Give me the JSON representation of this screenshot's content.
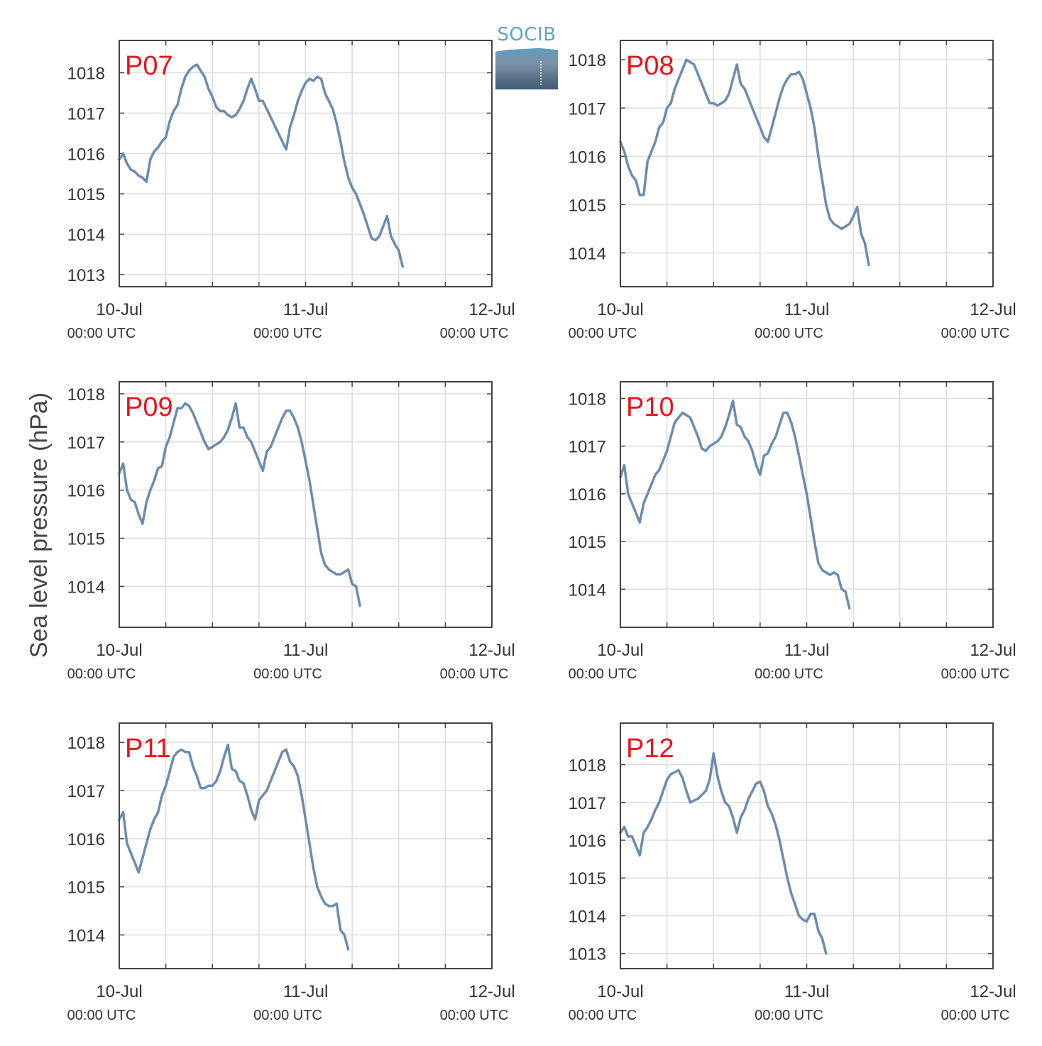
{
  "ylabel": "Sea level pressure (hPa)",
  "logo_text": "SOCIB",
  "x_tick_dates": [
    "10-Jul",
    "11-Jul",
    "12-Jul"
  ],
  "x_tick_times": [
    "00:00 UTC",
    "00:00 UTC",
    "00:00 UTC"
  ],
  "colors": {
    "line": "#6b8cae",
    "label": "#e8141c",
    "frame": "#444444",
    "grid": "#dddddd",
    "text": "#333333"
  },
  "chart_data": [
    {
      "type": "line",
      "station": "P07",
      "xlim": [
        0,
        48
      ],
      "ylim": [
        1012.7,
        1018.8
      ],
      "yticks": [
        1013,
        1014,
        1015,
        1016,
        1017,
        1018
      ],
      "x": [
        0,
        0.5,
        1,
        1.5,
        2,
        2.5,
        3,
        3.5,
        4,
        4.5,
        5,
        5.5,
        6,
        6.5,
        7,
        7.5,
        8,
        8.5,
        9,
        9.5,
        10,
        10.5,
        11,
        11.5,
        12,
        12.5,
        13,
        13.5,
        14,
        14.5,
        15,
        15.5,
        16,
        16.5,
        17,
        17.5,
        18,
        18.5,
        19,
        19.5,
        20,
        20.5,
        21,
        21.5,
        22,
        22.5,
        23,
        23.5,
        24,
        24.5,
        25,
        25.5,
        26,
        26.5,
        27,
        27.5,
        28,
        28.5,
        29,
        29.5,
        30,
        30.5,
        31,
        31.5,
        32,
        32.5,
        33,
        33.5,
        34,
        34.5,
        35,
        35.5,
        36,
        36.5,
        37,
        37.5,
        38,
        38.5,
        39,
        39.5,
        40,
        40.5,
        41,
        41.5,
        42,
        42.5,
        43,
        43.5,
        44,
        44.5,
        45,
        45.5,
        46,
        46.5,
        47,
        47.5,
        48
      ],
      "y": [
        1015.85,
        1016.0,
        1015.75,
        1015.6,
        1015.55,
        1015.45,
        1015.4,
        1015.3,
        1015.85,
        1016.05,
        1016.15,
        1016.3,
        1016.4,
        1016.8,
        1017.05,
        1017.2,
        1017.6,
        1017.9,
        1018.05,
        1018.15,
        1018.2,
        1018.05,
        1017.9,
        1017.6,
        1017.4,
        1017.15,
        1017.05,
        1017.05,
        1016.95,
        1016.9,
        1016.95,
        1017.1,
        1017.3,
        1017.6,
        1017.85,
        1017.6,
        1017.3,
        1017.3,
        1017.1,
        1016.9,
        1016.7,
        1016.5,
        1016.3,
        1016.1,
        1016.65,
        1016.95,
        1017.3,
        1017.55,
        1017.75,
        1017.85,
        1017.8,
        1017.9,
        1017.85,
        1017.5,
        1017.3,
        1017.1,
        1016.75,
        1016.3,
        1015.8,
        1015.4,
        1015.15,
        1015.0,
        1014.75,
        1014.5,
        1014.2,
        1013.9,
        1013.85,
        1013.95,
        1014.2,
        1014.45,
        1013.95,
        1013.75,
        1013.6,
        1013.2,
        null,
        null,
        null,
        null,
        null,
        null,
        null,
        null,
        null,
        null,
        null,
        null,
        null,
        null,
        null,
        null,
        null,
        null,
        null,
        null,
        null,
        null,
        null
      ]
    },
    {
      "type": "line",
      "station": "P08",
      "xlim": [
        0,
        48
      ],
      "ylim": [
        1013.3,
        1018.4
      ],
      "yticks": [
        1014,
        1015,
        1016,
        1017,
        1018
      ],
      "x": [
        0,
        0.5,
        1,
        1.5,
        2,
        2.5,
        3,
        3.5,
        4,
        4.5,
        5,
        5.5,
        6,
        6.5,
        7,
        7.5,
        8,
        8.5,
        9,
        9.5,
        10,
        10.5,
        11,
        11.5,
        12,
        12.5,
        13,
        13.5,
        14,
        14.5,
        15,
        15.5,
        16,
        16.5,
        17,
        17.5,
        18,
        18.5,
        19,
        19.5,
        20,
        20.5,
        21,
        21.5,
        22,
        22.5,
        23,
        23.5,
        24,
        24.5,
        25,
        25.5,
        26,
        26.5,
        27,
        27.5,
        28,
        28.5,
        29,
        29.5,
        30,
        30.5,
        31,
        31.5,
        32,
        32.5,
        33,
        33.5,
        34,
        34.5,
        35,
        35.5,
        36,
        36.5,
        37,
        37.5,
        38,
        38.5,
        39,
        39.5,
        40,
        40.5,
        41,
        41.5,
        42,
        42.5,
        43,
        43.5,
        44,
        44.5,
        45,
        45.5,
        46,
        46.5,
        47,
        47.5,
        48
      ],
      "y": [
        1016.3,
        1016.1,
        1015.8,
        1015.6,
        1015.5,
        1015.2,
        1015.2,
        1015.9,
        1016.1,
        1016.3,
        1016.6,
        1016.7,
        1017.0,
        1017.1,
        1017.4,
        1017.6,
        1017.8,
        1018.0,
        1017.95,
        1017.9,
        1017.7,
        1017.5,
        1017.3,
        1017.1,
        1017.1,
        1017.05,
        1017.1,
        1017.15,
        1017.3,
        1017.6,
        1017.9,
        1017.5,
        1017.4,
        1017.2,
        1017.0,
        1016.8,
        1016.6,
        1016.4,
        1016.3,
        1016.6,
        1016.9,
        1017.2,
        1017.45,
        1017.6,
        1017.7,
        1017.7,
        1017.75,
        1017.6,
        1017.3,
        1017.0,
        1016.6,
        1016.0,
        1015.5,
        1015.0,
        1014.7,
        1014.6,
        1014.55,
        1014.5,
        1014.55,
        1014.6,
        1014.75,
        1014.95,
        1014.4,
        1014.2,
        1013.75,
        null,
        null,
        null,
        null,
        null,
        null,
        null,
        null,
        null,
        null,
        null,
        null,
        null,
        null,
        null,
        null,
        null,
        null,
        null,
        null,
        null,
        null,
        null,
        null,
        null,
        null,
        null,
        null,
        null,
        null,
        null,
        null
      ]
    },
    {
      "type": "line",
      "station": "P09",
      "xlim": [
        0,
        48
      ],
      "ylim": [
        1013.15,
        1018.25
      ],
      "yticks": [
        1014,
        1015,
        1016,
        1017,
        1018
      ],
      "x": [
        0,
        0.5,
        1,
        1.5,
        2,
        2.5,
        3,
        3.5,
        4,
        4.5,
        5,
        5.5,
        6,
        6.5,
        7,
        7.5,
        8,
        8.5,
        9,
        9.5,
        10,
        10.5,
        11,
        11.5,
        12,
        12.5,
        13,
        13.5,
        14,
        14.5,
        15,
        15.5,
        16,
        16.5,
        17,
        17.5,
        18,
        18.5,
        19,
        19.5,
        20,
        20.5,
        21,
        21.5,
        22,
        22.5,
        23,
        23.5,
        24,
        24.5,
        25,
        25.5,
        26,
        26.5,
        27,
        27.5,
        28,
        28.5,
        29,
        29.5,
        30,
        30.5,
        31,
        31.5,
        32,
        32.5,
        33,
        33.5,
        34,
        34.5,
        35,
        35.5,
        36,
        36.5,
        37,
        37.5,
        38,
        38.5,
        39,
        39.5,
        40,
        40.5,
        41,
        41.5,
        42,
        42.5,
        43,
        43.5,
        44,
        44.5,
        45,
        45.5,
        46,
        46.5,
        47,
        47.5,
        48
      ],
      "y": [
        1016.35,
        1016.55,
        1016.0,
        1015.8,
        1015.75,
        1015.5,
        1015.3,
        1015.75,
        1016.0,
        1016.2,
        1016.45,
        1016.5,
        1016.9,
        1017.1,
        1017.4,
        1017.7,
        1017.7,
        1017.8,
        1017.75,
        1017.6,
        1017.4,
        1017.2,
        1017.0,
        1016.85,
        1016.9,
        1016.95,
        1017.0,
        1017.1,
        1017.25,
        1017.5,
        1017.8,
        1017.3,
        1017.3,
        1017.1,
        1017.0,
        1016.8,
        1016.6,
        1016.4,
        1016.8,
        1016.9,
        1017.1,
        1017.3,
        1017.5,
        1017.65,
        1017.65,
        1017.5,
        1017.3,
        1017.0,
        1016.6,
        1016.2,
        1015.7,
        1015.2,
        1014.7,
        1014.45,
        1014.35,
        1014.3,
        1014.25,
        1014.25,
        1014.3,
        1014.35,
        1014.05,
        1014.0,
        1013.6,
        null,
        null,
        null,
        null,
        null,
        null,
        null,
        null,
        null,
        null,
        null,
        null,
        null,
        null,
        null,
        null,
        null,
        null,
        null,
        null,
        null,
        null,
        null,
        null,
        null,
        null,
        null,
        null,
        null,
        null,
        null,
        null,
        null,
        null
      ]
    },
    {
      "type": "line",
      "station": "P10",
      "xlim": [
        0,
        48
      ],
      "ylim": [
        1013.2,
        1018.35
      ],
      "yticks": [
        1014,
        1015,
        1016,
        1017,
        1018
      ],
      "x": [
        0,
        0.5,
        1,
        1.5,
        2,
        2.5,
        3,
        3.5,
        4,
        4.5,
        5,
        5.5,
        6,
        6.5,
        7,
        7.5,
        8,
        8.5,
        9,
        9.5,
        10,
        10.5,
        11,
        11.5,
        12,
        12.5,
        13,
        13.5,
        14,
        14.5,
        15,
        15.5,
        16,
        16.5,
        17,
        17.5,
        18,
        18.5,
        19,
        19.5,
        20,
        20.5,
        21,
        21.5,
        22,
        22.5,
        23,
        23.5,
        24,
        24.5,
        25,
        25.5,
        26,
        26.5,
        27,
        27.5,
        28,
        28.5,
        29,
        29.5,
        30,
        30.5,
        31,
        31.5,
        32,
        32.5,
        33,
        33.5,
        34,
        34.5,
        35,
        35.5,
        36,
        36.5,
        37,
        37.5,
        38,
        38.5,
        39,
        39.5,
        40,
        40.5,
        41,
        41.5,
        42,
        42.5,
        43,
        43.5,
        44,
        44.5,
        45,
        45.5,
        46,
        46.5,
        47,
        47.5,
        48
      ],
      "y": [
        1016.35,
        1016.6,
        1016.0,
        1015.8,
        1015.6,
        1015.4,
        1015.8,
        1016.0,
        1016.2,
        1016.4,
        1016.5,
        1016.7,
        1016.9,
        1017.2,
        1017.5,
        1017.6,
        1017.7,
        1017.65,
        1017.6,
        1017.4,
        1017.2,
        1016.95,
        1016.9,
        1017.0,
        1017.05,
        1017.1,
        1017.2,
        1017.4,
        1017.65,
        1017.95,
        1017.45,
        1017.4,
        1017.2,
        1017.1,
        1016.9,
        1016.6,
        1016.4,
        1016.8,
        1016.85,
        1017.05,
        1017.2,
        1017.45,
        1017.7,
        1017.7,
        1017.5,
        1017.2,
        1016.8,
        1016.4,
        1016.0,
        1015.5,
        1015.0,
        1014.55,
        1014.4,
        1014.35,
        1014.3,
        1014.35,
        1014.3,
        1014.0,
        1013.95,
        1013.6,
        null,
        null,
        null,
        null,
        null,
        null,
        null,
        null,
        null,
        null,
        null,
        null,
        null,
        null,
        null,
        null,
        null,
        null,
        null,
        null,
        null,
        null,
        null,
        null,
        null,
        null,
        null,
        null,
        null,
        null,
        null,
        null,
        null,
        null,
        null,
        null,
        null
      ]
    },
    {
      "type": "line",
      "station": "P11",
      "xlim": [
        0,
        48
      ],
      "ylim": [
        1013.3,
        1018.4
      ],
      "yticks": [
        1014,
        1015,
        1016,
        1017,
        1018
      ],
      "x": [
        0,
        0.5,
        1,
        1.5,
        2,
        2.5,
        3,
        3.5,
        4,
        4.5,
        5,
        5.5,
        6,
        6.5,
        7,
        7.5,
        8,
        8.5,
        9,
        9.5,
        10,
        10.5,
        11,
        11.5,
        12,
        12.5,
        13,
        13.5,
        14,
        14.5,
        15,
        15.5,
        16,
        16.5,
        17,
        17.5,
        18,
        18.5,
        19,
        19.5,
        20,
        20.5,
        21,
        21.5,
        22,
        22.5,
        23,
        23.5,
        24,
        24.5,
        25,
        25.5,
        26,
        26.5,
        27,
        27.5,
        28,
        28.5,
        29,
        29.5,
        30,
        30.5,
        31,
        31.5,
        32,
        32.5,
        33,
        33.5,
        34,
        34.5,
        35,
        35.5,
        36,
        36.5,
        37,
        37.5,
        38,
        38.5,
        39,
        39.5,
        40,
        40.5,
        41,
        41.5,
        42,
        42.5,
        43,
        43.5,
        44,
        44.5,
        45,
        45.5,
        46,
        46.5,
        47,
        47.5,
        48
      ],
      "y": [
        1016.4,
        1016.55,
        1015.9,
        1015.7,
        1015.5,
        1015.3,
        1015.6,
        1015.9,
        1016.2,
        1016.4,
        1016.55,
        1016.9,
        1017.1,
        1017.4,
        1017.7,
        1017.8,
        1017.85,
        1017.8,
        1017.8,
        1017.5,
        1017.3,
        1017.05,
        1017.05,
        1017.1,
        1017.1,
        1017.2,
        1017.4,
        1017.7,
        1017.95,
        1017.45,
        1017.4,
        1017.2,
        1017.15,
        1016.9,
        1016.6,
        1016.4,
        1016.8,
        1016.9,
        1017.0,
        1017.2,
        1017.4,
        1017.6,
        1017.8,
        1017.85,
        1017.6,
        1017.5,
        1017.3,
        1016.9,
        1016.4,
        1015.9,
        1015.4,
        1015.0,
        1014.8,
        1014.65,
        1014.6,
        1014.6,
        1014.65,
        1014.1,
        1014.0,
        1013.7,
        null,
        null,
        null,
        null,
        null,
        null,
        null,
        null,
        null,
        null,
        null,
        null,
        null,
        null,
        null,
        null,
        null,
        null,
        null,
        null,
        null,
        null,
        null,
        null,
        null,
        null,
        null,
        null,
        null,
        null,
        null,
        null,
        null,
        null,
        null,
        null,
        null
      ]
    },
    {
      "type": "line",
      "station": "P12",
      "xlim": [
        0,
        48
      ],
      "ylim": [
        1012.6,
        1019.1
      ],
      "yticks": [
        1013,
        1014,
        1015,
        1016,
        1017,
        1018
      ],
      "x": [
        0,
        0.5,
        1,
        1.5,
        2,
        2.5,
        3,
        3.5,
        4,
        4.5,
        5,
        5.5,
        6,
        6.5,
        7,
        7.5,
        8,
        8.5,
        9,
        9.5,
        10,
        10.5,
        11,
        11.5,
        12,
        12.5,
        13,
        13.5,
        14,
        14.5,
        15,
        15.5,
        16,
        16.5,
        17,
        17.5,
        18,
        18.5,
        19,
        19.5,
        20,
        20.5,
        21,
        21.5,
        22,
        22.5,
        23,
        23.5,
        24,
        24.5,
        25,
        25.5,
        26,
        26.5,
        27,
        27.5,
        28,
        28.5,
        29,
        29.5,
        30,
        30.5,
        31,
        31.5,
        32,
        32.5,
        33,
        33.5,
        34,
        34.5,
        35,
        35.5,
        36,
        36.5,
        37,
        37.5,
        38,
        38.5,
        39,
        39.5,
        40,
        40.5,
        41,
        41.5,
        42,
        42.5,
        43,
        43.5,
        44,
        44.5,
        45,
        45.5,
        46,
        46.5,
        47,
        47.5,
        48
      ],
      "y": [
        1016.2,
        1016.35,
        1016.1,
        1016.1,
        1015.85,
        1015.6,
        1016.2,
        1016.35,
        1016.55,
        1016.8,
        1017.0,
        1017.3,
        1017.6,
        1017.75,
        1017.8,
        1017.85,
        1017.65,
        1017.3,
        1017.0,
        1017.05,
        1017.1,
        1017.2,
        1017.3,
        1017.6,
        1018.3,
        1017.7,
        1017.3,
        1017.0,
        1016.9,
        1016.6,
        1016.2,
        1016.6,
        1016.8,
        1017.1,
        1017.3,
        1017.5,
        1017.55,
        1017.3,
        1016.9,
        1016.7,
        1016.4,
        1016.0,
        1015.5,
        1015.0,
        1014.6,
        1014.3,
        1014.0,
        1013.9,
        1013.85,
        1014.05,
        1014.05,
        1013.6,
        1013.4,
        1013.0,
        null,
        null,
        null,
        null,
        null,
        null,
        null,
        null,
        null,
        null,
        null,
        null,
        null,
        null,
        null,
        null,
        null,
        null,
        null,
        null,
        null,
        null,
        null,
        null,
        null,
        null,
        null,
        null,
        null,
        null,
        null,
        null,
        null,
        null,
        null,
        null,
        null,
        null,
        null,
        null,
        null,
        null,
        null
      ]
    }
  ]
}
